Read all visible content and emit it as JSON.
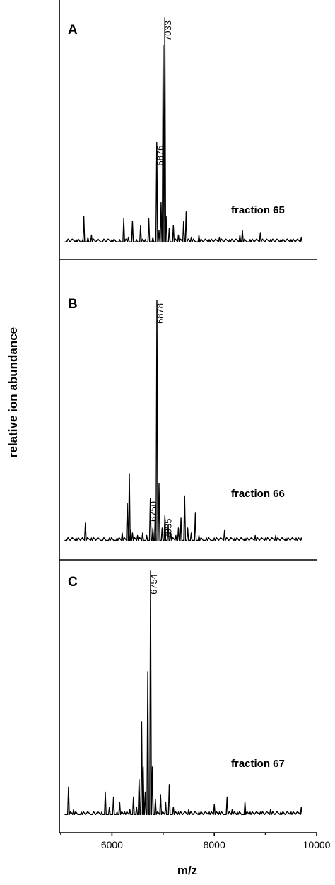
{
  "chart_data": {
    "type": "line",
    "xlabel": "m/z",
    "ylabel": "relative ion abundance",
    "xlim": [
      5000,
      10000
    ],
    "x_ticks": [
      6000,
      8000,
      10000
    ],
    "x_tick_labels": [
      "6000",
      "8000",
      "10000"
    ],
    "grid": false,
    "panels": [
      {
        "letter": "A",
        "fraction_label": "fraction 65",
        "series": [
          {
            "x": [
              5100,
              5300,
              5430,
              5450,
              5530,
              5600,
              5800,
              6000,
              6150,
              6230,
              6320,
              6400,
              6480,
              6560,
              6650,
              6720,
              6800,
              6876,
              6920,
              6960,
              7000,
              7033,
              7060,
              7120,
              7200,
              7300,
              7400,
              7450,
              7550,
              7700,
              7900,
              8100,
              8300,
              8500,
              8550,
              8700,
              8900,
              9100,
              9300,
              9500,
              9700
            ],
            "y": [
              3,
              4,
              4,
              14,
              5,
              6,
              3,
              4,
              4,
              13,
              5,
              12,
              4,
              10,
              4,
              13,
              5,
              46,
              8,
              20,
              88,
              100,
              14,
              9,
              10,
              6,
              12,
              16,
              5,
              6,
              4,
              5,
              4,
              6,
              8,
              4,
              7,
              4,
              4,
              4,
              5
            ]
          }
        ],
        "peak_labels": [
          {
            "x": 6876,
            "y": 46,
            "text": "6876"
          },
          {
            "x": 7033,
            "y": 100,
            "text": "7033"
          }
        ]
      },
      {
        "letter": "B",
        "fraction_label": "fraction 66",
        "series": [
          {
            "x": [
              5100,
              5300,
              5480,
              5600,
              5800,
              5950,
              6100,
              6200,
              6300,
              6340,
              6360,
              6400,
              6500,
              6600,
              6680,
              6750,
              6800,
              6850,
              6878,
              6920,
              6980,
              7035,
              7100,
              7150,
              7250,
              7300,
              7350,
              7420,
              7480,
              7550,
              7630,
              7700,
              7850,
              8000,
              8200,
              8400,
              8600,
              8800,
              9000,
              9200,
              9400,
              9600,
              9700
            ],
            "y": [
              3,
              4,
              10,
              4,
              3,
              4,
              4,
              6,
              18,
              30,
              7,
              6,
              5,
              6,
              5,
              20,
              8,
              17,
              100,
              26,
              8,
              13,
              9,
              6,
              5,
              8,
              12,
              21,
              8,
              6,
              14,
              5,
              4,
              4,
              7,
              4,
              4,
              5,
              4,
              5,
              4,
              4,
              4
            ]
          }
        ],
        "peak_labels": [
          {
            "x": 6750,
            "y": 20,
            "text": "6750"
          },
          {
            "x": 6878,
            "y": 100,
            "text": "6878"
          },
          {
            "x": 7035,
            "y": 13,
            "text": "7035"
          }
        ]
      },
      {
        "letter": "C",
        "fraction_label": "fraction 67",
        "series": [
          {
            "x": [
              5100,
              5150,
              5250,
              5400,
              5600,
              5800,
              5870,
              5950,
              6030,
              6100,
              6150,
              6250,
              6350,
              6420,
              6480,
              6530,
              6580,
              6610,
              6650,
              6700,
              6754,
              6790,
              6850,
              6950,
              7050,
              7120,
              7200,
              7300,
              7500,
              7700,
              7900,
              8000,
              8100,
              8250,
              8350,
              8450,
              8600,
              8700,
              8900,
              9100,
              9300,
              9500,
              9700
            ],
            "y": [
              3,
              14,
              5,
              4,
              3,
              4,
              12,
              6,
              10,
              4,
              8,
              4,
              5,
              10,
              6,
              17,
              40,
              22,
              12,
              60,
              100,
              22,
              9,
              11,
              8,
              15,
              6,
              4,
              5,
              4,
              4,
              7,
              4,
              10,
              5,
              4,
              8,
              4,
              4,
              5,
              4,
              4,
              6
            ]
          }
        ],
        "peak_labels": [
          {
            "x": 6754,
            "y": 100,
            "text": "6754"
          }
        ]
      }
    ]
  }
}
